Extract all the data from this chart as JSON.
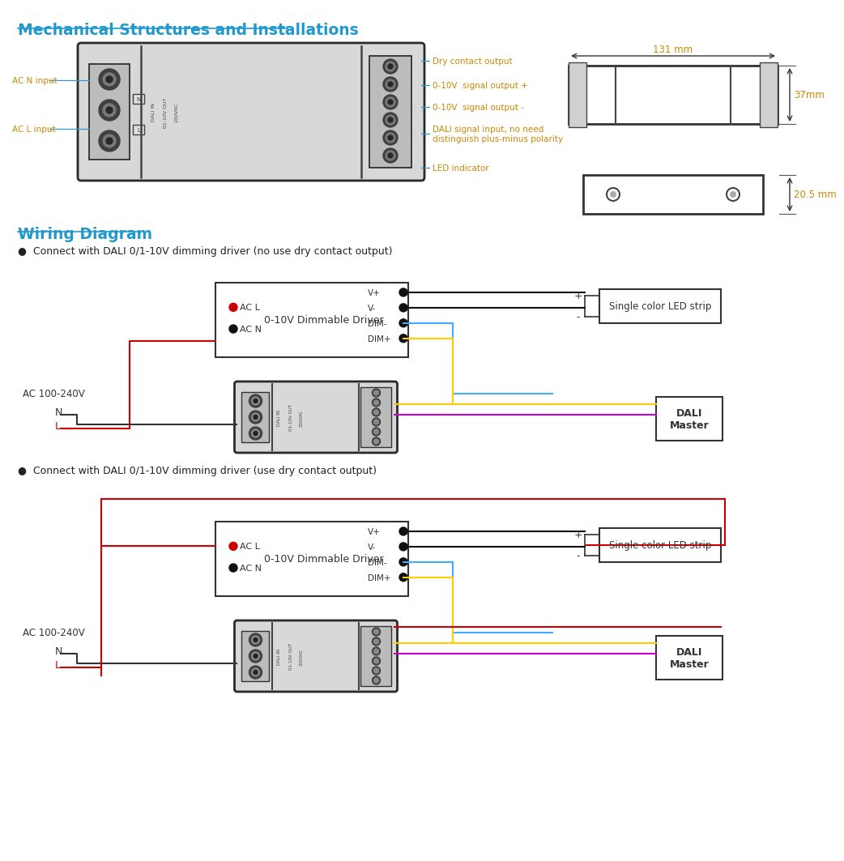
{
  "title_mech": "Mechanical Structures and Installations",
  "title_wiring": "Wiring Diagram",
  "title_color": "#2299CC",
  "label_color": "#CC8800",
  "line_color_blue": "#3399CC",
  "bg_color": "#FFFFFF",
  "mech_labels_left": [
    "AC N input",
    "AC L input"
  ],
  "mech_labels_right": [
    "Dry contact output",
    "0-10V  signal output +",
    "0-10V  signal output -",
    "DALI signal input, no need\ndistinguish plus-minus polarity",
    "LED indicator"
  ],
  "dim_131": "131 mm",
  "dim_37": "37mm",
  "dim_205": "20.5 mm",
  "wiring1_title": "Connect with DALI 0/1-10V dimming driver (no use dry contact output)",
  "wiring2_title": "Connect with DALI 0/1-10V dimming driver (use dry contact output)",
  "driver_label": "0-10V Dimmable Driver",
  "acl_label": "AC L",
  "acn_label": "AC N",
  "led_strip_label": "Single color LED strip",
  "dali_master_label": "DALI\nMaster",
  "ac_supply_label": "AC 100-240V",
  "n_label": "N",
  "l_label": "L",
  "lbls_drv": [
    "V+",
    "V-",
    "DIM-",
    "DIM+"
  ]
}
